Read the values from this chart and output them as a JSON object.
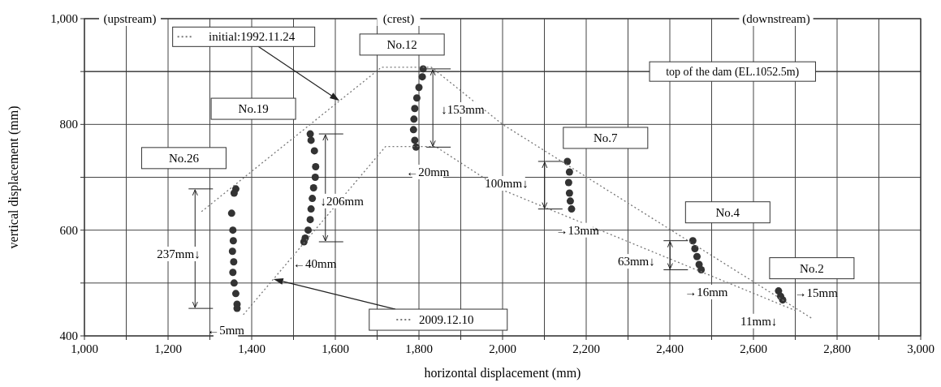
{
  "chart_data": {
    "type": "scatter",
    "xlabel": "horizontal displacement (mm)",
    "ylabel": "vertical displacement (mm)",
    "xlim": [
      1000,
      3000
    ],
    "ylim": [
      400,
      1000
    ],
    "xticks": [
      {
        "value": 1000,
        "label": "1,000"
      },
      {
        "value": 1100,
        "label": null
      },
      {
        "value": 1200,
        "label": "1,200"
      },
      {
        "value": 1300,
        "label": null
      },
      {
        "value": 1400,
        "label": "1,400"
      },
      {
        "value": 1500,
        "label": null
      },
      {
        "value": 1600,
        "label": "1,600"
      },
      {
        "value": 1700,
        "label": null
      },
      {
        "value": 1800,
        "label": "1,800"
      },
      {
        "value": 1900,
        "label": null
      },
      {
        "value": 2000,
        "label": "2,000"
      },
      {
        "value": 2100,
        "label": null
      },
      {
        "value": 2200,
        "label": "2,200"
      },
      {
        "value": 2300,
        "label": null
      },
      {
        "value": 2400,
        "label": "2,400"
      },
      {
        "value": 2500,
        "label": null
      },
      {
        "value": 2600,
        "label": "2,600"
      },
      {
        "value": 2700,
        "label": null
      },
      {
        "value": 2800,
        "label": "2,800"
      },
      {
        "value": 2900,
        "label": null
      },
      {
        "value": 3000,
        "label": "3,000"
      }
    ],
    "yticks": [
      {
        "value": 400,
        "label": "400"
      },
      {
        "value": 500,
        "label": null
      },
      {
        "value": 600,
        "label": "600"
      },
      {
        "value": 700,
        "label": null
      },
      {
        "value": 800,
        "label": "800"
      },
      {
        "value": 900,
        "label": null
      },
      {
        "value": 1000,
        "label": "1,000"
      }
    ],
    "grid": true,
    "marker": "circle",
    "legend": "left",
    "series": [
      {
        "name": "No.26",
        "color": "#333333",
        "x": [
          1362,
          1358,
          1352,
          1355,
          1356,
          1354,
          1357,
          1355,
          1358,
          1362,
          1365,
          1365
        ],
        "values": [
          678,
          670,
          632,
          600,
          580,
          560,
          540,
          520,
          500,
          480,
          460,
          452
        ]
      },
      {
        "name": "No.19",
        "color": "#333333",
        "x": [
          1540,
          1542,
          1550,
          1553,
          1552,
          1548,
          1545,
          1542,
          1540,
          1535,
          1528,
          1525
        ],
        "values": [
          782,
          770,
          750,
          720,
          700,
          680,
          660,
          640,
          620,
          600,
          585,
          578
        ]
      },
      {
        "name": "No.12",
        "color": "#333333",
        "x": [
          1810,
          1808,
          1800,
          1795,
          1790,
          1788,
          1787,
          1790,
          1793
        ],
        "values": [
          905,
          890,
          870,
          850,
          830,
          810,
          790,
          770,
          757
        ]
      },
      {
        "name": "No.7",
        "color": "#333333",
        "x": [
          2155,
          2160,
          2158,
          2160,
          2162,
          2165
        ],
        "values": [
          730,
          710,
          690,
          670,
          655,
          640
        ]
      },
      {
        "name": "No.4",
        "color": "#333333",
        "x": [
          2455,
          2460,
          2465,
          2470,
          2475
        ],
        "values": [
          580,
          565,
          550,
          535,
          525
        ]
      },
      {
        "name": "No.2",
        "color": "#333333",
        "x": [
          2660,
          2665,
          2670
        ],
        "values": [
          485,
          475,
          468
        ]
      },
      {
        "name": "initial:1992.11.24",
        "type": "line",
        "marker": "none",
        "line_style": "dotted",
        "color": "#777777",
        "x": [
          1280,
          1710,
          1830,
          2000,
          2740
        ],
        "values": [
          635,
          908,
          908,
          800,
          433
        ]
      },
      {
        "name": "2009.12.10",
        "type": "line",
        "marker": "none",
        "line_style": "dotted",
        "color": "#777777",
        "x": [
          1380,
          1720,
          1840,
          2000,
          2700
        ],
        "values": [
          440,
          758,
          758,
          676,
          448
        ]
      }
    ],
    "ref_lines": [
      {
        "axis": "y",
        "value": 900,
        "label": "top of the dam (EL.1052.5m)",
        "color": "#333333"
      }
    ],
    "annotations": [
      "(upstream)",
      "(crest)",
      "(downstream)",
      "237mm↓",
      "↓153mm",
      "100mm↓",
      {
        "text": "←5mm",
        "x": 1338,
        "y": 411
      },
      {
        "text": "↓206mm",
        "x": 1616,
        "y": 655
      },
      {
        "text": "←40mm",
        "x": 1551,
        "y": 537
      },
      {
        "text": "←20mm",
        "x": 1821,
        "y": 710
      },
      {
        "text": "→13mm",
        "x": 2179,
        "y": 600
      },
      {
        "text": "63mm↓",
        "x": 2320,
        "y": 541
      },
      {
        "text": "→16mm",
        "x": 2487,
        "y": 483
      },
      {
        "text": "→15mm",
        "x": 2750,
        "y": 482
      },
      {
        "text": "11mm↓",
        "x": 2613,
        "y": 428
      }
    ]
  }
}
